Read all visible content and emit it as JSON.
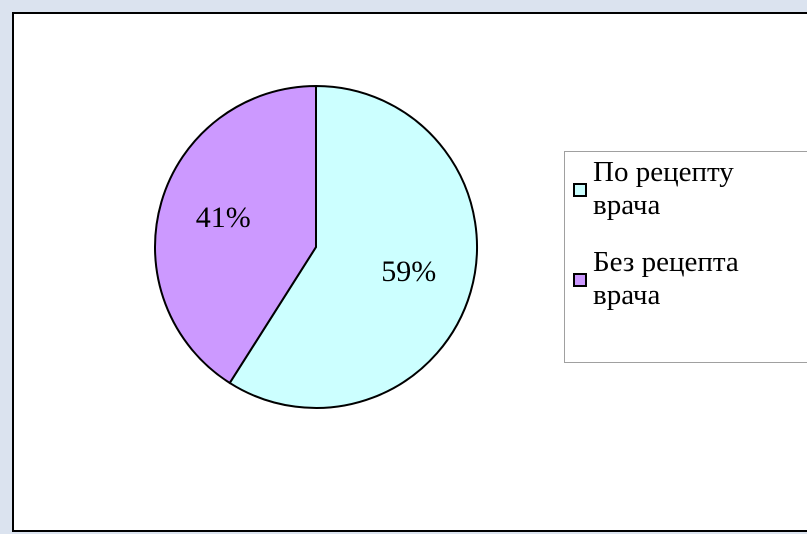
{
  "chart_data": {
    "type": "pie",
    "slices": [
      {
        "label_lines": [
          "По рецепту",
          "врача"
        ],
        "value": 59,
        "value_label": "59%",
        "color": "#ccffff"
      },
      {
        "label_lines": [
          "Без рецепта",
          "врача"
        ],
        "value": 41,
        "value_label": "41%",
        "color": "#cc99ff"
      }
    ],
    "legend_position": "right"
  }
}
